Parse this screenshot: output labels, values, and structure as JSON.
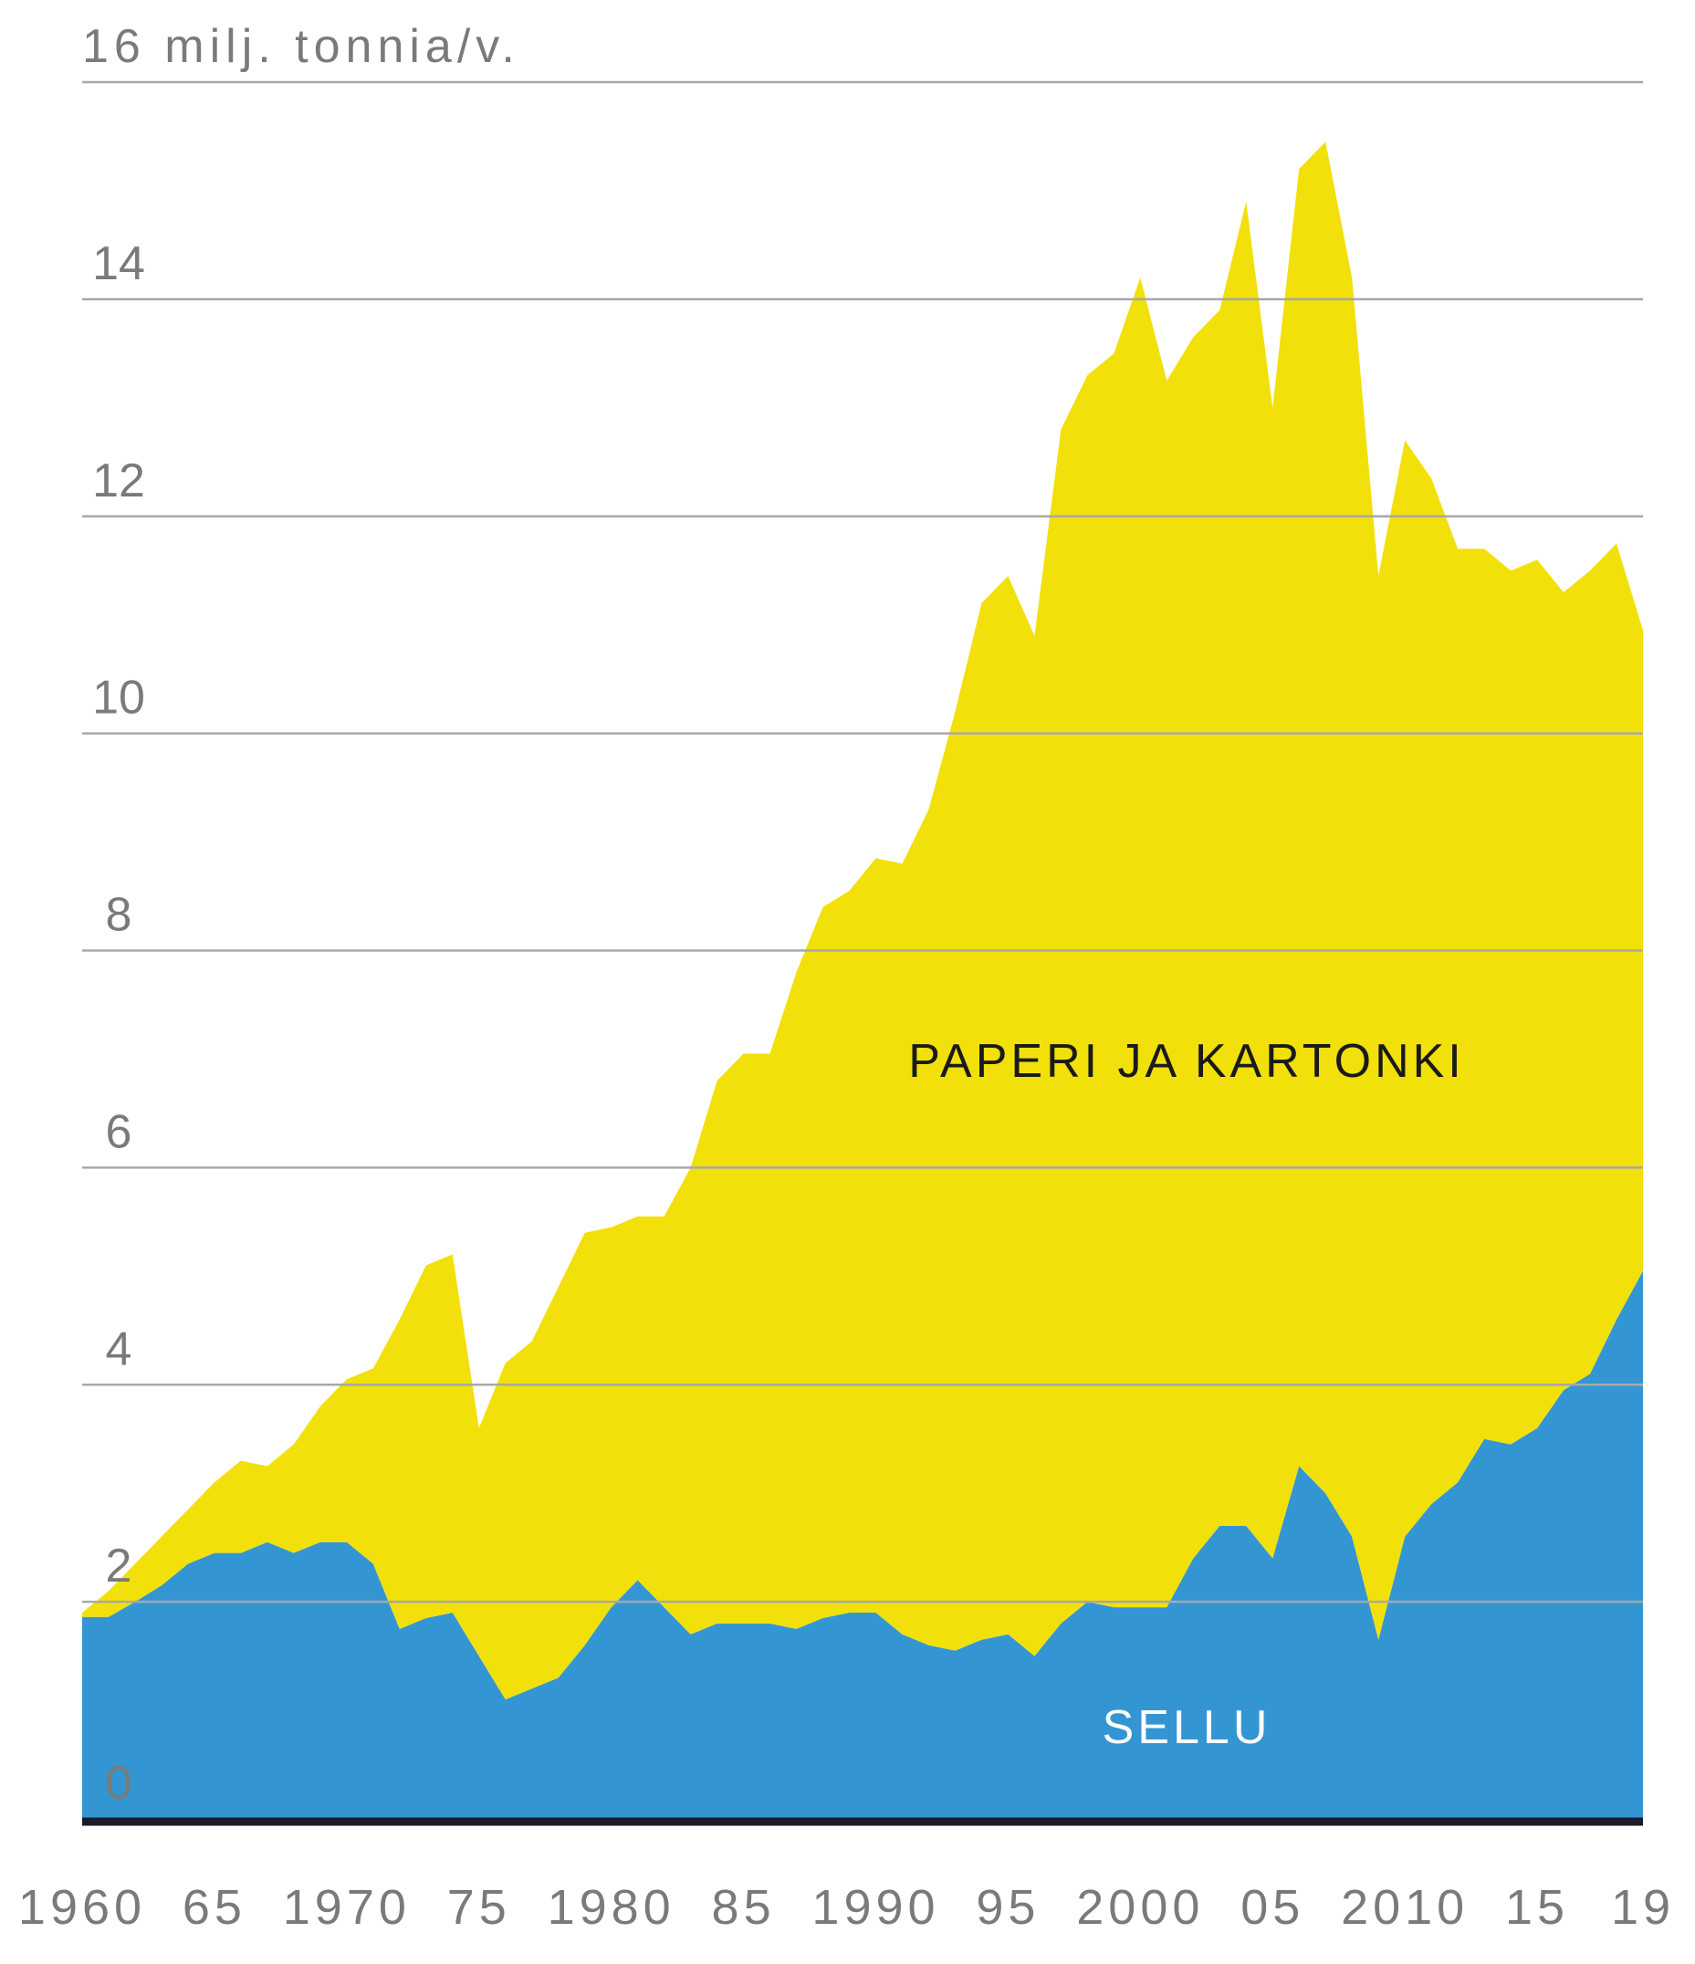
{
  "chart_data": {
    "type": "stacked_area",
    "x": [
      1960,
      1961,
      1962,
      1963,
      1964,
      1965,
      1966,
      1967,
      1968,
      1969,
      1970,
      1971,
      1972,
      1973,
      1974,
      1975,
      1976,
      1977,
      1978,
      1979,
      1980,
      1981,
      1982,
      1983,
      1984,
      1985,
      1986,
      1987,
      1988,
      1989,
      1990,
      1991,
      1992,
      1993,
      1994,
      1995,
      1996,
      1997,
      1998,
      1999,
      2000,
      2001,
      2002,
      2003,
      2004,
      2005,
      2006,
      2007,
      2008,
      2009,
      2010,
      2011,
      2012,
      2013,
      2014,
      2015,
      2016,
      2017,
      2018,
      2019
    ],
    "series": [
      {
        "name": "SELLU",
        "color": "#3396d3",
        "label_color": "#ffffff",
        "values": [
          1.86,
          1.86,
          2.0,
          2.15,
          2.35,
          2.45,
          2.45,
          2.55,
          2.45,
          2.55,
          2.55,
          2.35,
          1.75,
          1.85,
          1.9,
          1.5,
          1.1,
          1.2,
          1.3,
          1.6,
          1.95,
          2.2,
          1.95,
          1.7,
          1.8,
          1.8,
          1.8,
          1.75,
          1.85,
          1.9,
          1.9,
          1.7,
          1.6,
          1.55,
          1.65,
          1.7,
          1.5,
          1.8,
          2.0,
          1.95,
          1.95,
          1.95,
          2.4,
          2.7,
          2.7,
          2.4,
          3.25,
          3.0,
          2.6,
          1.65,
          2.6,
          2.9,
          3.1,
          3.5,
          3.45,
          3.6,
          3.95,
          4.1,
          4.6,
          5.05
        ]
      },
      {
        "name": "PAPERI JA KARTONKI",
        "color": "#f2e00a",
        "label_color": "#1a1a1a",
        "values": [
          0.04,
          0.24,
          0.35,
          0.45,
          0.5,
          0.65,
          0.85,
          0.7,
          1.0,
          1.25,
          1.5,
          1.8,
          2.85,
          3.25,
          3.3,
          2.1,
          3.1,
          3.2,
          3.6,
          3.8,
          3.5,
          3.35,
          3.6,
          4.3,
          5.0,
          5.25,
          5.25,
          6.05,
          6.55,
          6.65,
          6.95,
          7.1,
          7.7,
          8.65,
          9.55,
          9.75,
          9.4,
          11.0,
          11.3,
          11.55,
          12.25,
          11.3,
          11.25,
          11.2,
          12.2,
          10.6,
          11.95,
          12.45,
          11.6,
          9.8,
          10.1,
          9.45,
          8.6,
          8.2,
          8.05,
          8.0,
          7.35,
          7.4,
          7.15,
          5.9
        ]
      }
    ],
    "xlim": [
      1960,
      2019
    ],
    "xticks": [
      1960,
      {
        "value": 1965,
        "label": "65"
      },
      1970,
      {
        "value": 1975,
        "label": "75"
      },
      1980,
      {
        "value": 1985,
        "label": "85"
      },
      1990,
      {
        "value": 1995,
        "label": "95"
      },
      2000,
      {
        "value": 2005,
        "label": "05"
      },
      2010,
      {
        "value": 2015,
        "label": "15"
      },
      {
        "value": 2019,
        "label": "19"
      }
    ],
    "ylim": [
      0,
      16
    ],
    "yticks": [
      0,
      2,
      4,
      6,
      8,
      10,
      12,
      14,
      {
        "value": 16,
        "label": "16 milj. tonnia/v."
      }
    ],
    "grid": true
  }
}
